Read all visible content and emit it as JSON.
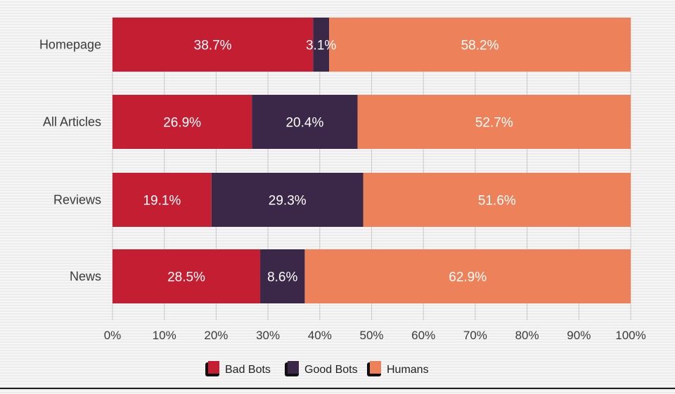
{
  "chart_data": {
    "type": "bar",
    "orientation": "horizontal",
    "stacked": true,
    "categories": [
      "Homepage",
      "All Articles",
      "Reviews",
      "News"
    ],
    "series": [
      {
        "name": "Bad Bots",
        "values": [
          38.7,
          26.9,
          19.1,
          28.5
        ],
        "labels": [
          "38.7%",
          "26.9%",
          "19.1%",
          "28.5%"
        ],
        "color": "#c41e32"
      },
      {
        "name": "Good Bots",
        "values": [
          3.1,
          20.4,
          29.3,
          8.6
        ],
        "labels": [
          "3.1%",
          "20.4%",
          "29.3%",
          "8.6%"
        ],
        "color": "#3b2747"
      },
      {
        "name": "Humans",
        "values": [
          58.2,
          52.7,
          51.6,
          62.9
        ],
        "labels": [
          "58.2%",
          "52.7%",
          "51.6%",
          "62.9%"
        ],
        "color": "#ed8159"
      }
    ],
    "xlim": [
      0,
      100
    ],
    "x_ticks": [
      "0%",
      "10%",
      "20%",
      "30%",
      "40%",
      "50%",
      "60%",
      "70%",
      "80%",
      "90%",
      "100%"
    ],
    "grid": true,
    "legend_position": "bottom-center",
    "gridline_color": "#c9c9c9"
  }
}
